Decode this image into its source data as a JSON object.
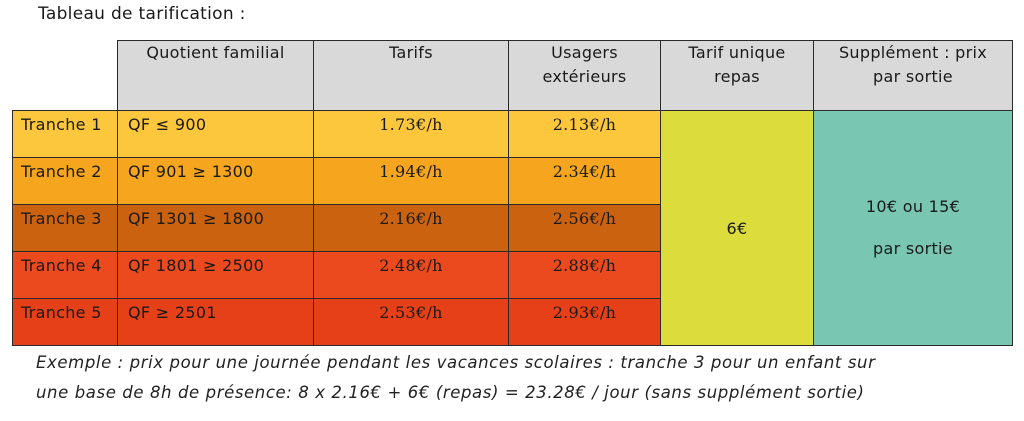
{
  "title": "Tableau de tarification :",
  "headers": {
    "qf": "Quotient familial",
    "tarifs": "Tarifs",
    "ext_line1": "Usagers",
    "ext_line2": "extérieurs",
    "repas_line1": "Tarif unique",
    "repas_line2": "repas",
    "supp_line1": "Supplément : prix",
    "supp_line2": "par sortie"
  },
  "rows": [
    {
      "tranche": "Tranche 1",
      "qf": "QF ≤ 900",
      "tarif": "1.73€/h",
      "ext": "2.13€/h",
      "color": "#fdc73d"
    },
    {
      "tranche": "Tranche 2",
      "qf": "QF 901 ≥ 1300",
      "tarif": "1.94€/h",
      "ext": "2.34€/h",
      "color": "#f5a51e"
    },
    {
      "tranche": "Tranche 3",
      "qf": "QF 1301 ≥ 1800",
      "tarif": "2.16€/h",
      "ext": "2.56€/h",
      "color": "#cb6210"
    },
    {
      "tranche": "Tranche 4",
      "qf": "QF 1801 ≥ 2500",
      "tarif": "2.48€/h",
      "ext": "2.88€/h",
      "color": "#ea4a1d"
    },
    {
      "tranche": "Tranche 5",
      "qf": "QF ≥ 2501",
      "tarif": "2.53€/h",
      "ext": "2.93€/h",
      "color": "#e64018"
    }
  ],
  "repas_value": "6€",
  "supp_value_line1": "10€ ou 15€",
  "supp_value_line2": "par sortie",
  "colors": {
    "header_bg": "#d9d9d9",
    "repas_bg": "#dcdc3c",
    "supp_bg": "#79c6b2"
  },
  "example": {
    "line1": "Exemple : prix pour une journée pendant les vacances scolaires : tranche 3 pour un enfant sur",
    "line2": "une base de 8h de présence: 8 x 2.16€ + 6€ (repas) = 23.28€ / jour (sans supplément sortie)"
  }
}
